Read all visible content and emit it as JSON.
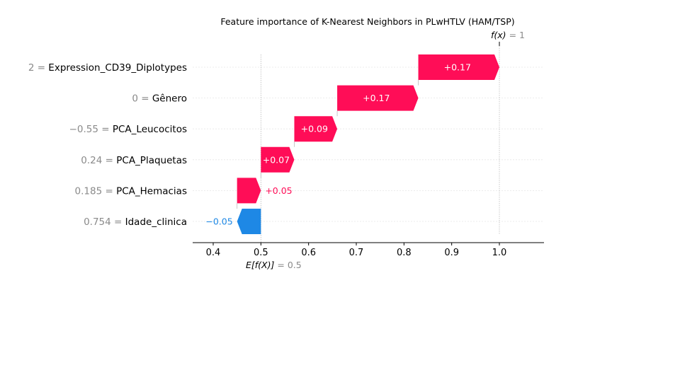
{
  "chart_data": {
    "type": "waterfall",
    "title": "Feature importance of K-Nearest Neighbors in PLwHTLV (HAM/TSP)",
    "base_value": 0.5,
    "base_label": {
      "name": "E[f(X)]",
      "value_text": "0.5"
    },
    "output_value": 1.0,
    "output_label": {
      "name": "f(x)",
      "value_text": "1"
    },
    "features": [
      {
        "value_text": "2",
        "name": "Expression_CD39_Diplotypes",
        "contribution": 0.17,
        "label": "+0.17"
      },
      {
        "value_text": "0",
        "name": "Gênero",
        "contribution": 0.17,
        "label": "+0.17"
      },
      {
        "value_text": "−0.55",
        "name": "PCA_Leucocitos",
        "contribution": 0.09,
        "label": "+0.09"
      },
      {
        "value_text": "0.24",
        "name": "PCA_Plaquetas",
        "contribution": 0.07,
        "label": "+0.07"
      },
      {
        "value_text": "0.185",
        "name": "PCA_Hemacias",
        "contribution": 0.05,
        "label": "+0.05"
      },
      {
        "value_text": "0.754",
        "name": "Idade_clinica",
        "contribution": -0.05,
        "label": "−0.05"
      }
    ],
    "xlim": [
      0.355,
      1.095
    ],
    "xticks": [
      0.4,
      0.5,
      0.6,
      0.7,
      0.8,
      0.9,
      1.0
    ],
    "xtick_labels": [
      "0.4",
      "0.5",
      "0.6",
      "0.7",
      "0.8",
      "0.9",
      "1.0"
    ],
    "colors": {
      "positive": "#ff0d57",
      "negative": "#1e88e5",
      "axis": "#000000",
      "muted_text": "#8a8a8a",
      "grid": "#e6e6e6"
    },
    "grid": true
  }
}
